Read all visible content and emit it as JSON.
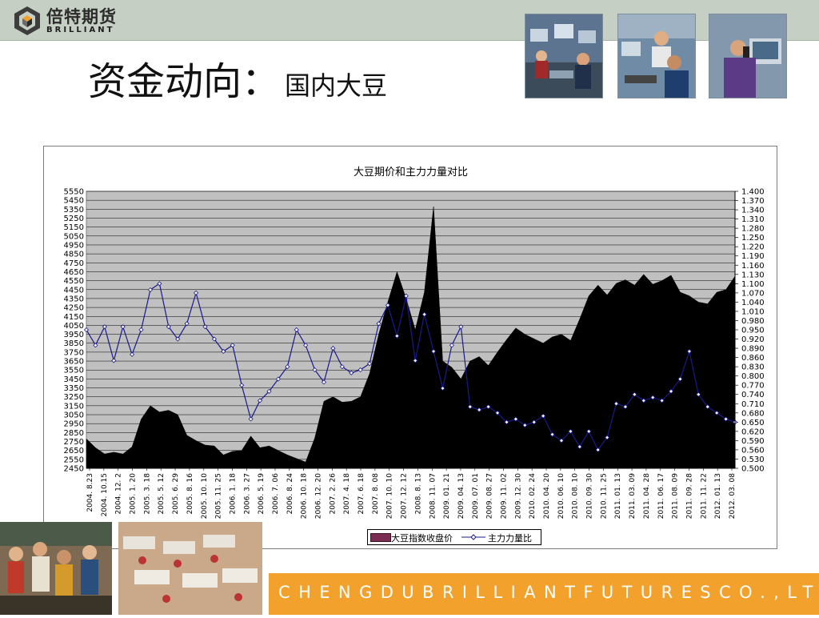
{
  "header": {
    "logo_cn": "倍特期货",
    "logo_en": "BRILLIANT",
    "title_main": "资金动向：",
    "title_sub": "国内大豆"
  },
  "footer": {
    "text": "CHENGDUBRILLIANTFUTURESCO.,LTD."
  },
  "colors": {
    "bar": "#c5cfc3",
    "footer": "#f2a22c",
    "plot_bg": "#c0c0c0",
    "area": "#000000",
    "line": "#1a1a8c"
  },
  "photos": [
    "trading-floor-photo",
    "operator-headset-photo",
    "trader-phone-photo",
    "crowd-photo",
    "trading-hall-photo"
  ],
  "chart_data": {
    "type": "area",
    "title": "大豆期价和主力力量对比",
    "x_tick_labels": [
      "2004. 8.23",
      "2004. 10.15",
      "2004. 12. 2",
      "2005. 1. 20",
      "2005. 3. 18",
      "2005. 5. 12",
      "2005. 6. 29",
      "2005. 8. 16",
      "2005. 10. 10",
      "2005. 11. 25",
      "2006. 1. 18",
      "2006. 3. 27",
      "2006. 5. 19",
      "2006. 7. 06",
      "2006. 8. 24",
      "2006. 10. 18",
      "2006. 12. 20",
      "2007. 2. 26",
      "2007. 4. 18",
      "2007. 6. 18",
      "2007. 8. 08",
      "2007. 10. 10",
      "2007. 12. 12",
      "2008. 8. 13",
      "2008. 11. 07",
      "2009. 01. 21",
      "2009. 04. 13",
      "2009. 07. 01",
      "2009. 08. 27",
      "2009. 11. 02",
      "2009. 12. 30",
      "2010. 02. 24",
      "2010. 04. 20",
      "2010. 06. 10",
      "2010. 08. 10",
      "2010. 09. 30",
      "2010. 11. 25",
      "2011. 01. 13",
      "2011. 03. 09",
      "2011. 04. 28",
      "2011. 06. 17",
      "2011. 08. 09",
      "2011. 09. 28",
      "2011. 11. 22",
      "2012. 01. 13",
      "2012. 03. 08"
    ],
    "y_left": {
      "min": 2450,
      "max": 5550,
      "step": 100
    },
    "y_right": {
      "min": 0.5,
      "max": 1.4,
      "step": 0.03
    },
    "legend_position": "bottom",
    "grid": true,
    "series": [
      {
        "name": "大豆指数收盘价",
        "axis": "left",
        "values": [
          2780,
          2680,
          2610,
          2630,
          2610,
          2690,
          3000,
          3150,
          3080,
          3100,
          3050,
          2820,
          2760,
          2710,
          2700,
          2600,
          2640,
          2650,
          2810,
          2680,
          2700,
          2650,
          2600,
          2560,
          2520,
          2790,
          3200,
          3250,
          3190,
          3200,
          3250,
          3510,
          3950,
          4310,
          4650,
          4350,
          4000,
          4420,
          5380,
          3650,
          3580,
          3450,
          3650,
          3700,
          3600,
          3750,
          3890,
          4020,
          3950,
          3900,
          3850,
          3920,
          3950,
          3880,
          4120,
          4380,
          4500,
          4390,
          4520,
          4560,
          4500,
          4620,
          4510,
          4550,
          4610,
          4420,
          4380,
          4310,
          4290,
          4420,
          4450,
          4600
        ]
      },
      {
        "name": "主力力量比",
        "axis": "right",
        "values": [
          0.95,
          0.9,
          0.96,
          0.85,
          0.96,
          0.87,
          0.95,
          1.08,
          1.1,
          0.96,
          0.92,
          0.97,
          1.07,
          0.96,
          0.92,
          0.88,
          0.9,
          0.77,
          0.66,
          0.72,
          0.75,
          0.79,
          0.83,
          0.95,
          0.9,
          0.82,
          0.78,
          0.89,
          0.83,
          0.81,
          0.82,
          0.84,
          0.97,
          1.03,
          0.93,
          1.06,
          0.85,
          1.0,
          0.88,
          0.76,
          0.9,
          0.96,
          0.7,
          0.69,
          0.7,
          0.68,
          0.65,
          0.66,
          0.64,
          0.65,
          0.67,
          0.61,
          0.59,
          0.62,
          0.57,
          0.62,
          0.56,
          0.6,
          0.71,
          0.7,
          0.74,
          0.72,
          0.73,
          0.72,
          0.75,
          0.79,
          0.88,
          0.74,
          0.7,
          0.68,
          0.66,
          0.65
        ]
      }
    ]
  }
}
